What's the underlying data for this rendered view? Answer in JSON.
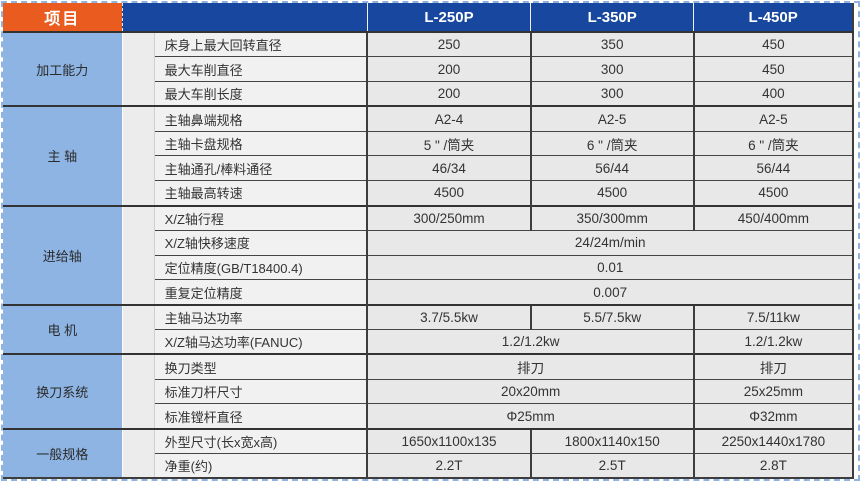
{
  "table": {
    "corner_label": "项目",
    "columns": [
      "L-250P",
      "L-350P",
      "L-450P"
    ],
    "groups": [
      {
        "category": "加工能力",
        "rows": [
          {
            "label": "床身上最大回转直径",
            "values": [
              "250",
              "350",
              "450"
            ]
          },
          {
            "label": "最大车削直径",
            "values": [
              "200",
              "300",
              "450"
            ]
          },
          {
            "label": "最大车削长度",
            "values": [
              "200",
              "300",
              "400"
            ]
          }
        ]
      },
      {
        "category": "主 轴",
        "rows": [
          {
            "label": "主轴鼻端规格",
            "values": [
              "A2-4",
              "A2-5",
              "A2-5"
            ]
          },
          {
            "label": "主轴卡盘规格",
            "values": [
              "5 \" /筒夹",
              "6 \" /筒夹",
              "6 \" /筒夹"
            ]
          },
          {
            "label": "主轴通孔/棒料通径",
            "values": [
              "46/34",
              "56/44",
              "56/44"
            ]
          },
          {
            "label": "主轴最高转速",
            "values": [
              "4500",
              "4500",
              "4500"
            ]
          }
        ]
      },
      {
        "category": "进给轴",
        "rows": [
          {
            "label": "X/Z轴行程",
            "values": [
              "300/250mm",
              "350/300mm",
              "450/400mm"
            ]
          },
          {
            "label": "X/Z轴快移速度",
            "span_all": "24/24m/min"
          },
          {
            "label": "定位精度(GB/T18400.4)",
            "span_all": "0.01"
          },
          {
            "label": "重复定位精度",
            "span_all": "0.007"
          }
        ]
      },
      {
        "category": "电 机",
        "rows": [
          {
            "label": "主轴马达功率",
            "values": [
              "3.7/5.5kw",
              "5.5/7.5kw",
              "7.5/11kw"
            ]
          },
          {
            "label": "X/Z轴马达功率(FANUC)",
            "span2": "1.2/1.2kw",
            "col3": "1.2/1.2kw"
          }
        ]
      },
      {
        "category": "换刀系统",
        "rows": [
          {
            "label": "换刀类型",
            "span2": "排刀",
            "col3": "排刀"
          },
          {
            "label": "标准刀杆尺寸",
            "span2": "20x20mm",
            "col3": "25x25mm"
          },
          {
            "label": "标准镗杆直径",
            "span2": "Φ25mm",
            "col3": "Φ32mm"
          }
        ]
      },
      {
        "category": "一般规格",
        "rows": [
          {
            "label": "外型尺寸(长x宽x高)",
            "values": [
              "1650x1100x135",
              "1800x1140x150",
              "2250x1440x1780"
            ]
          },
          {
            "label": "净重(约)",
            "values": [
              "2.2T",
              "2.5T",
              "2.8T"
            ]
          }
        ]
      }
    ],
    "colors": {
      "corner_bg": "#e95b1e",
      "header_bg": "#17479e",
      "category_bg": "#8db4e2",
      "value_bg": "#e8e8e8",
      "rule": "#3d3d3d"
    }
  }
}
